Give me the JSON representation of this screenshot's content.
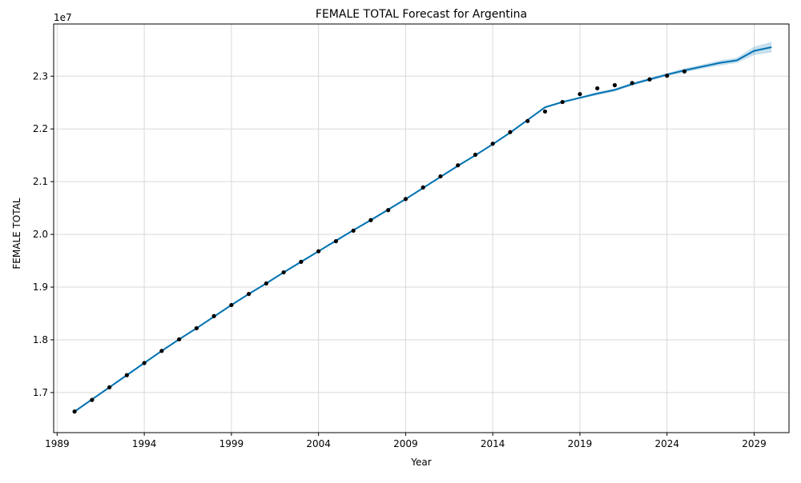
{
  "chart_data": {
    "type": "line",
    "title": "FEMALE TOTAL Forecast for Argentina",
    "xlabel": "Year",
    "ylabel": "FEMALE TOTAL",
    "y_offset_label": "1e7",
    "xlim": [
      1988.8,
      2031.0
    ],
    "ylim": [
      16.24,
      23.99
    ],
    "x_ticks": [
      1989,
      1994,
      1999,
      2004,
      2009,
      2014,
      2019,
      2024,
      2029
    ],
    "x_tick_labels": [
      "1989",
      "1994",
      "1999",
      "2004",
      "2009",
      "2014",
      "2019",
      "2024",
      "2029"
    ],
    "y_ticks": [
      17,
      18,
      19,
      20,
      21,
      22,
      23
    ],
    "y_tick_labels": [
      "1.7",
      "1.8",
      "1.9",
      "2.0",
      "2.1",
      "2.2",
      "2.3"
    ],
    "grid": true,
    "colors": {
      "forecast_line": "#0072B2",
      "interval_fill": "#0072B2",
      "observed_points": "#000000",
      "grid": "#d9d9d9"
    },
    "series": [
      {
        "kind": "observed",
        "x": [
          1990,
          1991,
          1992,
          1993,
          1994,
          1995,
          1996,
          1997,
          1998,
          1999,
          2000,
          2001,
          2002,
          2003,
          2004,
          2005,
          2006,
          2007,
          2008,
          2009,
          2010,
          2011,
          2012,
          2013,
          2014,
          2015,
          2016,
          2017,
          2018,
          2019,
          2020,
          2021,
          2022,
          2023,
          2024,
          2025
        ],
        "values": [
          16.64,
          16.86,
          17.1,
          17.33,
          17.56,
          17.79,
          18.01,
          18.22,
          18.45,
          18.66,
          18.87,
          19.07,
          19.28,
          19.48,
          19.68,
          19.87,
          20.07,
          20.27,
          20.46,
          20.67,
          20.89,
          21.1,
          21.31,
          21.51,
          21.72,
          21.94,
          22.15,
          22.33,
          22.51,
          22.66,
          22.77,
          22.83,
          22.87,
          22.94,
          23.01,
          23.09
        ]
      },
      {
        "kind": "forecast",
        "x": [
          1990,
          1991,
          1992,
          1993,
          1994,
          1995,
          1996,
          1997,
          1998,
          1999,
          2000,
          2001,
          2002,
          2003,
          2004,
          2005,
          2006,
          2007,
          2008,
          2009,
          2010,
          2011,
          2012,
          2013,
          2014,
          2015,
          2016,
          2017,
          2018,
          2019,
          2020,
          2021,
          2022,
          2023,
          2024,
          2025,
          2026,
          2027,
          2028,
          2029,
          2030
        ],
        "values": [
          16.64,
          16.87,
          17.1,
          17.33,
          17.56,
          17.79,
          18.01,
          18.22,
          18.44,
          18.66,
          18.87,
          19.07,
          19.28,
          19.48,
          19.68,
          19.88,
          20.08,
          20.27,
          20.47,
          20.67,
          20.88,
          21.09,
          21.3,
          21.5,
          21.71,
          21.93,
          22.17,
          22.41,
          22.51,
          22.59,
          22.67,
          22.74,
          22.85,
          22.94,
          23.03,
          23.11,
          23.18,
          23.25,
          23.3,
          23.48,
          23.55
        ],
        "lower": [
          16.62,
          16.85,
          17.08,
          17.31,
          17.54,
          17.77,
          17.99,
          18.2,
          18.42,
          18.64,
          18.85,
          19.05,
          19.26,
          19.46,
          19.66,
          19.86,
          20.06,
          20.25,
          20.45,
          20.65,
          20.86,
          21.07,
          21.28,
          21.48,
          21.69,
          21.91,
          22.15,
          22.39,
          22.49,
          22.57,
          22.64,
          22.71,
          22.82,
          22.91,
          23.0,
          23.07,
          23.14,
          23.2,
          23.25,
          23.4,
          23.45
        ],
        "upper": [
          16.66,
          16.89,
          17.12,
          17.35,
          17.58,
          17.81,
          18.03,
          18.24,
          18.46,
          18.68,
          18.89,
          19.09,
          19.3,
          19.5,
          19.7,
          19.9,
          20.1,
          20.29,
          20.49,
          20.69,
          20.9,
          21.11,
          21.32,
          21.52,
          21.73,
          21.95,
          22.19,
          22.43,
          22.53,
          22.61,
          22.7,
          22.77,
          22.88,
          22.97,
          23.06,
          23.15,
          23.22,
          23.3,
          23.35,
          23.56,
          23.65
        ]
      }
    ]
  }
}
